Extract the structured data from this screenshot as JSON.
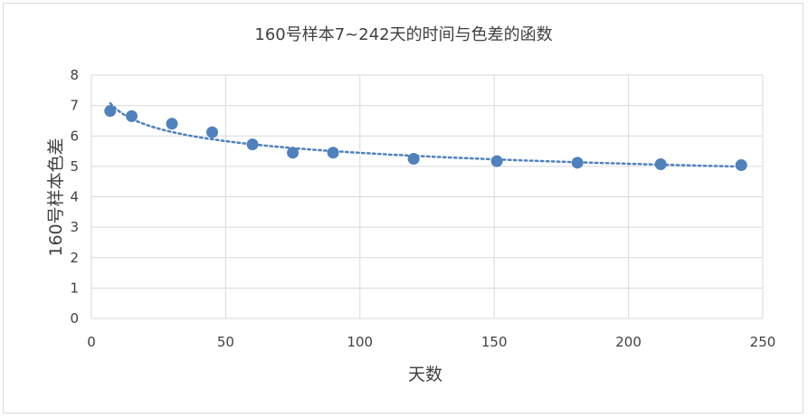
{
  "chart_data": {
    "type": "scatter",
    "title": "160号样本7~242天的时间与色差的函数",
    "xlabel": "天数",
    "ylabel": "160号样本色差",
    "xlim": [
      0,
      250
    ],
    "ylim": [
      0,
      8
    ],
    "x_ticks": [
      0,
      50,
      100,
      150,
      200,
      250
    ],
    "y_ticks": [
      0,
      1,
      2,
      3,
      4,
      5,
      6,
      7,
      8
    ],
    "grid": true,
    "legend": "none",
    "marker_color": "#4f81bd",
    "trendline": {
      "style": "dotted",
      "type": "power",
      "color": "#4f81bd"
    },
    "series": [
      {
        "x": [
          7,
          15,
          30,
          45,
          60,
          75,
          90,
          120,
          151,
          181,
          212,
          242
        ],
        "y": [
          6.82,
          6.65,
          6.4,
          6.12,
          5.72,
          5.45,
          5.45,
          5.25,
          5.17,
          5.12,
          5.07,
          5.04
        ]
      }
    ]
  }
}
